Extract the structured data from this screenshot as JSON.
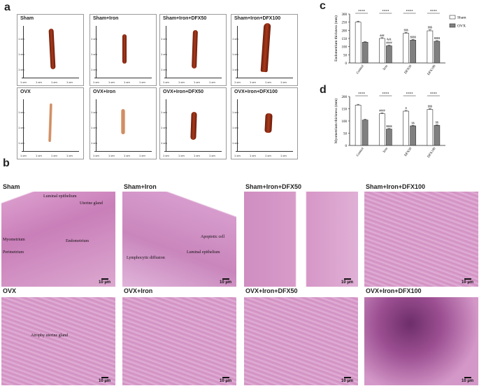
{
  "panel_labels": {
    "a": "a",
    "b": "b",
    "c": "c",
    "d": "d"
  },
  "photo_panel": {
    "ruler_text": "1 cm",
    "tiles": [
      {
        "label": "Sham"
      },
      {
        "label": "Sham+Iron"
      },
      {
        "label": "Sham+Iron+DFX50"
      },
      {
        "label": "Sham+Iron+DFX100"
      },
      {
        "label": "OVX"
      },
      {
        "label": "OVX+Iron"
      },
      {
        "label": "OVX+Iron+DFX50"
      },
      {
        "label": "OVX+Iron+DFX100"
      }
    ]
  },
  "histology": {
    "scale_text": "10 µm",
    "tiles": [
      {
        "title": "Sham",
        "annotations": [
          "Luminal epithelium",
          "Uterine gland",
          "Myometrium",
          "Perimetrium",
          "Endometrium"
        ]
      },
      {
        "title": "Sham+Iron",
        "annotations": [
          "Apoptotic cell",
          "Lymphocytic diffusion",
          "Luminal epithelium"
        ]
      },
      {
        "title": "Sham+Iron+DFX50",
        "annotations": []
      },
      {
        "title": "Sham+Iron+DFX100",
        "annotations": []
      },
      {
        "title": "OVX",
        "annotations": [
          "Atrophy uterine gland"
        ]
      },
      {
        "title": "OVX+Iron",
        "annotations": []
      },
      {
        "title": "OVX+Iron+DFX50",
        "annotations": []
      },
      {
        "title": "OVX+Iron+DFX100",
        "annotations": []
      }
    ]
  },
  "colors": {
    "sham_bar": "#ffffff",
    "ovx_bar": "#808080",
    "stain": "#d98fc4",
    "tissue": "#8a2a12"
  },
  "chart_data": [
    {
      "type": "bar",
      "panel": "c",
      "ylabel": "Endometrium thickness (mm)",
      "categories": [
        "Control",
        "Iron",
        "DFX50",
        "DFX100"
      ],
      "ylim": [
        0,
        300
      ],
      "yticks": [
        0,
        50,
        100,
        150,
        200,
        250,
        300
      ],
      "legend_position": "top-right",
      "series": [
        {
          "name": "Sham",
          "values": [
            250,
            150,
            182,
            197
          ],
          "errors": [
            6,
            5,
            5,
            6
          ]
        },
        {
          "name": "OVX",
          "values": [
            127,
            105,
            140,
            133
          ],
          "errors": [
            3,
            4,
            4,
            4
          ]
        }
      ],
      "annotations_top": [
        "****",
        "****",
        "****",
        "****"
      ],
      "sham_marks": [
        "",
        "###",
        "$$$",
        "$$$"
      ],
      "ovx_marks": [
        "",
        "####",
        "$$$$",
        "$$$$"
      ],
      "ovx_extra": [
        "",
        "&&",
        "",
        ""
      ]
    },
    {
      "type": "bar",
      "panel": "d",
      "ylabel": "Myometrium thickness (mm)",
      "categories": [
        "Control",
        "Iron",
        "DFX50",
        "DFX100"
      ],
      "ylim": [
        0,
        200
      ],
      "yticks": [
        0,
        50,
        100,
        150,
        200
      ],
      "legend_position": "none",
      "series": [
        {
          "name": "Sham",
          "values": [
            165,
            130,
            140,
            147
          ],
          "errors": [
            3,
            3,
            3,
            3
          ]
        },
        {
          "name": "OVX",
          "values": [
            104,
            67,
            80,
            82
          ],
          "errors": [
            3,
            2,
            2,
            2
          ]
        }
      ],
      "annotations_top": [
        "****",
        "****",
        "****",
        "****"
      ],
      "sham_marks": [
        "",
        "####",
        "$",
        "$$$"
      ],
      "ovx_marks": [
        "",
        "$$$$",
        "$$",
        "$$"
      ],
      "ovx_extra": [
        "",
        "",
        "",
        ""
      ]
    }
  ]
}
